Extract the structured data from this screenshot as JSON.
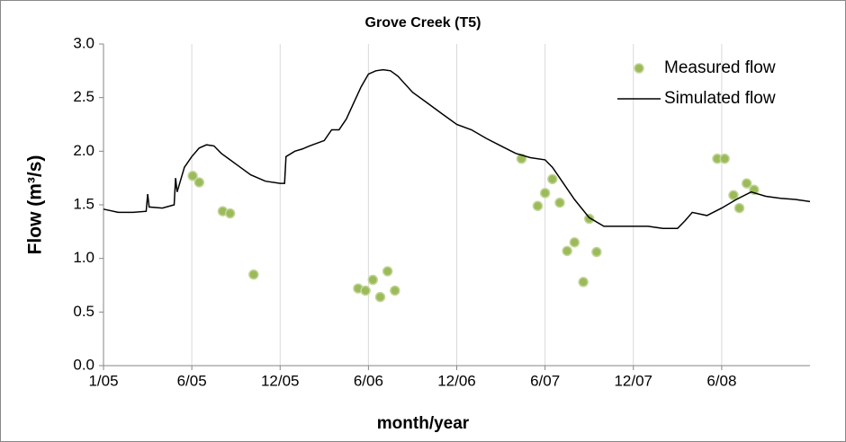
{
  "chart_data": {
    "type": "line",
    "title": "Grove Creek (T5)",
    "xlabel": "month/year",
    "ylabel": "Flow (m³/s)",
    "xlim": [
      0,
      48
    ],
    "xticks": [
      {
        "value": 0,
        "label": "1/05"
      },
      {
        "value": 6,
        "label": "6/05"
      },
      {
        "value": 12,
        "label": "12/05"
      },
      {
        "value": 18,
        "label": "6/06"
      },
      {
        "value": 24,
        "label": "12/06"
      },
      {
        "value": 30,
        "label": "6/07"
      },
      {
        "value": 36,
        "label": "12/07"
      },
      {
        "value": 42,
        "label": "6/08"
      }
    ],
    "ylim": [
      0,
      3
    ],
    "yticks": [
      {
        "value": 0,
        "label": "0.0"
      },
      {
        "value": 0.5,
        "label": "0.5"
      },
      {
        "value": 1,
        "label": "1.0"
      },
      {
        "value": 1.5,
        "label": "1.5"
      },
      {
        "value": 2,
        "label": "2.0"
      },
      {
        "value": 2.5,
        "label": "2.5"
      },
      {
        "value": 3,
        "label": "3.0"
      }
    ],
    "grid": "x",
    "legend": "upper right",
    "series": [
      {
        "name": "Measured flow",
        "type": "scatter",
        "color": "#9bbb59",
        "x": [
          6.06,
          6.5,
          8.1,
          8.6,
          10.2,
          17.3,
          17.8,
          18.3,
          18.8,
          19.3,
          19.8,
          28.4,
          29.5,
          30.0,
          30.5,
          31.0,
          31.5,
          32.0,
          32.6,
          33.0,
          33.5,
          41.7,
          42.2,
          42.8,
          43.2,
          43.7,
          44.2
        ],
        "values": [
          1.77,
          1.71,
          1.44,
          1.42,
          0.85,
          0.72,
          0.7,
          0.8,
          0.64,
          0.88,
          0.7,
          1.93,
          1.49,
          1.61,
          1.74,
          1.52,
          1.07,
          1.15,
          0.78,
          1.37,
          1.06,
          1.93,
          1.93,
          1.59,
          1.47,
          1.7,
          1.64
        ]
      },
      {
        "name": "Simulated flow",
        "type": "line",
        "color": "#000000",
        "x": [
          0,
          1,
          2,
          2.9,
          3,
          3.1,
          4,
          4.8,
          4.9,
          5,
          5.5,
          6,
          6.5,
          7,
          7.5,
          8,
          9,
          10,
          11,
          12,
          12.3,
          12.4,
          13,
          13.5,
          14,
          15,
          15.5,
          16,
          16.5,
          17,
          17.5,
          18,
          18.5,
          19,
          19.5,
          20,
          21,
          22,
          23,
          24,
          25,
          26,
          27,
          28,
          29,
          30,
          30.5,
          31,
          32,
          33,
          34,
          35,
          36,
          37,
          38,
          39,
          39.5,
          40,
          41,
          42,
          43,
          44,
          45,
          46,
          47,
          48
        ],
        "values": [
          1.46,
          1.43,
          1.43,
          1.44,
          1.6,
          1.48,
          1.47,
          1.5,
          1.75,
          1.62,
          1.85,
          1.95,
          2.03,
          2.06,
          2.05,
          1.98,
          1.88,
          1.78,
          1.72,
          1.7,
          1.7,
          1.95,
          2.0,
          2.02,
          2.05,
          2.1,
          2.2,
          2.2,
          2.3,
          2.45,
          2.6,
          2.72,
          2.75,
          2.76,
          2.75,
          2.7,
          2.55,
          2.45,
          2.35,
          2.25,
          2.2,
          2.12,
          2.05,
          1.98,
          1.94,
          1.92,
          1.85,
          1.75,
          1.55,
          1.38,
          1.3,
          1.3,
          1.3,
          1.3,
          1.28,
          1.28,
          1.35,
          1.43,
          1.4,
          1.47,
          1.55,
          1.62,
          1.58,
          1.56,
          1.55,
          1.53
        ]
      }
    ]
  }
}
